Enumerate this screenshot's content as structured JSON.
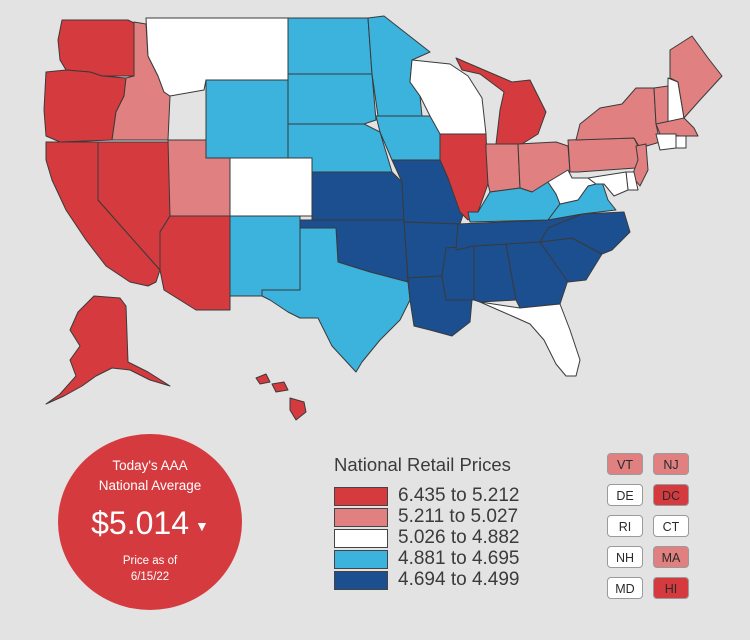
{
  "colors": {
    "tier1": "#d53a3f",
    "tier2": "#e08080",
    "tier3": "#ffffff",
    "tier4": "#3bb3dc",
    "tier5": "#1c4f90",
    "background": "#e3e3e3"
  },
  "badge": {
    "title_line1": "Today's AAA",
    "title_line2": "National Average",
    "price": "$5.014",
    "trend_icon": "down-triangle-icon",
    "note_line1": "Price as of",
    "note_line2": "6/15/22"
  },
  "legend": {
    "title": "National Retail Prices",
    "items": [
      {
        "label": "6.435 to 5.212",
        "color": "#d53a3f"
      },
      {
        "label": "5.211 to 5.027",
        "color": "#e08080"
      },
      {
        "label": "5.026 to 4.882",
        "color": "#ffffff"
      },
      {
        "label": "4.881 to 4.695",
        "color": "#3bb3dc"
      },
      {
        "label": "4.694 to 4.499",
        "color": "#1c4f90"
      }
    ]
  },
  "small_states": [
    {
      "abbr": "VT",
      "tier": 2
    },
    {
      "abbr": "NJ",
      "tier": 2
    },
    {
      "abbr": "DE",
      "tier": 3
    },
    {
      "abbr": "DC",
      "tier": 1
    },
    {
      "abbr": "RI",
      "tier": 3
    },
    {
      "abbr": "CT",
      "tier": 3
    },
    {
      "abbr": "NH",
      "tier": 3
    },
    {
      "abbr": "MA",
      "tier": 2
    },
    {
      "abbr": "MD",
      "tier": 3
    },
    {
      "abbr": "HI",
      "tier": 1
    }
  ],
  "map": {
    "states": [
      {
        "code": "WA",
        "tier": 1
      },
      {
        "code": "OR",
        "tier": 1
      },
      {
        "code": "CA",
        "tier": 1
      },
      {
        "code": "NV",
        "tier": 1
      },
      {
        "code": "AZ",
        "tier": 1
      },
      {
        "code": "AK",
        "tier": 1
      },
      {
        "code": "HI",
        "tier": 1
      },
      {
        "code": "IL",
        "tier": 1
      },
      {
        "code": "MI",
        "tier": 1
      },
      {
        "code": "ID",
        "tier": 2
      },
      {
        "code": "UT",
        "tier": 2
      },
      {
        "code": "IN",
        "tier": 2
      },
      {
        "code": "OH",
        "tier": 2
      },
      {
        "code": "PA",
        "tier": 2
      },
      {
        "code": "NY",
        "tier": 2
      },
      {
        "code": "ME",
        "tier": 2
      },
      {
        "code": "VT",
        "tier": 2
      },
      {
        "code": "MA",
        "tier": 2
      },
      {
        "code": "NJ",
        "tier": 2
      },
      {
        "code": "MT",
        "tier": 3
      },
      {
        "code": "CO",
        "tier": 3
      },
      {
        "code": "WI",
        "tier": 3
      },
      {
        "code": "WV",
        "tier": 3
      },
      {
        "code": "FL",
        "tier": 3
      },
      {
        "code": "NH",
        "tier": 3
      },
      {
        "code": "CT",
        "tier": 3
      },
      {
        "code": "RI",
        "tier": 3
      },
      {
        "code": "DE",
        "tier": 3
      },
      {
        "code": "MD",
        "tier": 3
      },
      {
        "code": "ND",
        "tier": 4
      },
      {
        "code": "SD",
        "tier": 4
      },
      {
        "code": "NE",
        "tier": 4
      },
      {
        "code": "MN",
        "tier": 4
      },
      {
        "code": "IA",
        "tier": 4
      },
      {
        "code": "WY",
        "tier": 4
      },
      {
        "code": "NM",
        "tier": 4
      },
      {
        "code": "TX",
        "tier": 4
      },
      {
        "code": "KY",
        "tier": 4
      },
      {
        "code": "VA",
        "tier": 4
      },
      {
        "code": "KS",
        "tier": 5
      },
      {
        "code": "OK",
        "tier": 5
      },
      {
        "code": "MO",
        "tier": 5
      },
      {
        "code": "AR",
        "tier": 5
      },
      {
        "code": "LA",
        "tier": 5
      },
      {
        "code": "MS",
        "tier": 5
      },
      {
        "code": "AL",
        "tier": 5
      },
      {
        "code": "GA",
        "tier": 5
      },
      {
        "code": "TN",
        "tier": 5
      },
      {
        "code": "SC",
        "tier": 5
      },
      {
        "code": "NC",
        "tier": 5
      }
    ]
  }
}
